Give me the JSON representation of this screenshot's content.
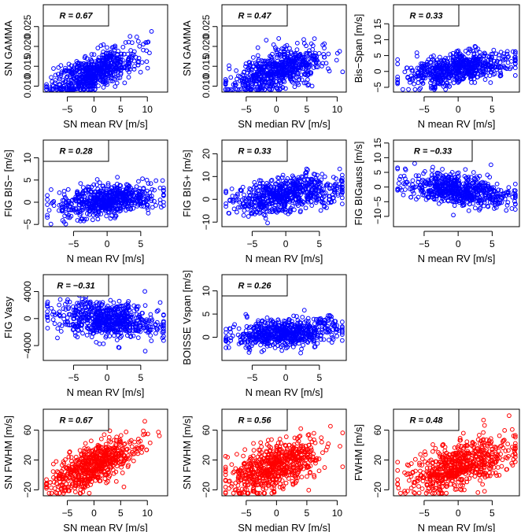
{
  "figure": {
    "colors": {
      "blue": "#0000ff",
      "red": "#ff0000"
    }
  },
  "chart_data": [
    {
      "type": "scatter",
      "color": "blue",
      "xlabel": "SN mean RV [m/s]",
      "ylabel": "SN GAMMA",
      "annotation": "R = 0.67",
      "xlim": [
        -9.5,
        13.8
      ],
      "ylim": [
        0.0085,
        0.0305
      ],
      "xticks": [
        -5,
        0,
        5,
        10
      ],
      "xticklabels": [
        "−5",
        "0",
        "5",
        "10"
      ],
      "yticks": [
        0.01,
        0.015,
        0.02,
        0.025
      ],
      "yticklabels": [
        "0.010",
        "0.015",
        "0.020",
        "0.025"
      ],
      "trend": {
        "slope": 0.00045,
        "intercept": 0.0136,
        "noise": 0.0022
      },
      "point_count": 650
    },
    {
      "type": "scatter",
      "color": "blue",
      "xlabel": "SN median RV [m/s]",
      "ylabel": "SN GAMMA",
      "annotation": "R = 0.47",
      "xlim": [
        -9.0,
        11.5
      ],
      "ylim": [
        0.0085,
        0.0305
      ],
      "xticks": [
        -5,
        0,
        5,
        10
      ],
      "xticklabels": [
        "−5",
        "0",
        "5",
        "10"
      ],
      "yticks": [
        0.01,
        0.015,
        0.02,
        0.025
      ],
      "yticklabels": [
        "0.010",
        "0.015",
        "0.020",
        "0.025"
      ],
      "trend": {
        "slope": 0.00042,
        "intercept": 0.0138,
        "noise": 0.0023
      },
      "point_count": 650
    },
    {
      "type": "scatter",
      "color": "blue",
      "xlabel": "N mean RV [m/s]",
      "ylabel": "Bis−Span [m/s]",
      "annotation": "R = 0.33",
      "xlim": [
        -9.5,
        9.0
      ],
      "ylim": [
        -6.5,
        21
      ],
      "xticks": [
        -5,
        0,
        5
      ],
      "xticklabels": [
        "−5",
        "0",
        "5"
      ],
      "yticks": [
        -5,
        0,
        5,
        10,
        15
      ],
      "yticklabels": [
        "−5",
        "0",
        "5",
        "10",
        "15"
      ],
      "trend": {
        "slope": 0.3,
        "intercept": 1.0,
        "noise": 2.4
      },
      "point_count": 650
    },
    {
      "type": "scatter",
      "color": "blue",
      "xlabel": "N mean RV [m/s]",
      "ylabel": "FIG BIS− [m/s]",
      "annotation": "R = 0.28",
      "xlim": [
        -9.5,
        9.0
      ],
      "ylim": [
        -5.5,
        14
      ],
      "xticks": [
        -5,
        0,
        5
      ],
      "xticklabels": [
        "−5",
        "0",
        "5"
      ],
      "yticks": [
        -5,
        0,
        5,
        10
      ],
      "yticklabels": [
        "−5",
        "0",
        "5",
        "10"
      ],
      "trend": {
        "slope": 0.18,
        "intercept": 0.4,
        "noise": 1.7
      },
      "point_count": 650
    },
    {
      "type": "scatter",
      "color": "blue",
      "xlabel": "N mean RV [m/s]",
      "ylabel": "FIG BIS+ [m/s]",
      "annotation": "R = 0.33",
      "xlim": [
        -9.5,
        9.0
      ],
      "ylim": [
        -12,
        26
      ],
      "xticks": [
        -5,
        0,
        5
      ],
      "xticklabels": [
        "−5",
        "0",
        "5"
      ],
      "yticks": [
        -10,
        0,
        10,
        20
      ],
      "yticklabels": [
        "−10",
        "0",
        "10",
        "20"
      ],
      "trend": {
        "slope": 0.4,
        "intercept": 2.0,
        "noise": 3.8
      },
      "point_count": 650
    },
    {
      "type": "scatter",
      "color": "blue",
      "xlabel": "N mean RV [m/s]",
      "ylabel": "FIG BIGauss [m/s]",
      "annotation": "R = −0.33",
      "xlim": [
        -9.5,
        9.0
      ],
      "ylim": [
        -13.5,
        16
      ],
      "xticks": [
        -5,
        0,
        5
      ],
      "xticklabels": [
        "−5",
        "0",
        "5"
      ],
      "yticks": [
        -10,
        -5,
        0,
        5,
        10,
        15
      ],
      "yticklabels": [
        "−10",
        "−5",
        "0",
        "5",
        "10",
        "15"
      ],
      "trend": {
        "slope": -0.3,
        "intercept": -1.0,
        "noise": 2.5
      },
      "point_count": 650
    },
    {
      "type": "scatter",
      "color": "blue",
      "xlabel": "N mean RV [m/s]",
      "ylabel": "FIG Vasy",
      "annotation": "R = −0.31",
      "xlim": [
        -9.5,
        9.0
      ],
      "ylim": [
        -6200,
        6500
      ],
      "xticks": [
        -5,
        0,
        5
      ],
      "xticklabels": [
        "−5",
        "0",
        "5"
      ],
      "yticks": [
        -4000,
        0,
        4000
      ],
      "yticklabels": [
        "−4000",
        "0",
        "4000"
      ],
      "trend": {
        "slope": -110,
        "intercept": -200,
        "noise": 1300
      },
      "point_count": 650
    },
    {
      "type": "scatter",
      "color": "blue",
      "xlabel": "N mean RV [m/s]",
      "ylabel": "BOISSE Vspan [m/s]",
      "annotation": "R = 0.26",
      "xlim": [
        -9.5,
        9.0
      ],
      "ylim": [
        -5.0,
        13.5
      ],
      "xticks": [
        -5,
        0,
        5
      ],
      "xticklabels": [
        "−5",
        "0",
        "5"
      ],
      "yticks": [
        0,
        5,
        10
      ],
      "yticklabels": [
        "0",
        "5",
        "10"
      ],
      "trend": {
        "slope": 0.14,
        "intercept": 1.0,
        "noise": 1.5
      },
      "point_count": 650
    },
    {
      "type": "scatter",
      "color": "red",
      "xlabel": "SN mean RV [m/s]",
      "ylabel": "SN FWHM [m/s]",
      "annotation": "R = 0.67",
      "xlim": [
        -9.5,
        13.8
      ],
      "ylim": [
        -28,
        88
      ],
      "xticks": [
        -5,
        0,
        5,
        10
      ],
      "xticklabels": [
        "−5",
        "0",
        "5",
        "10"
      ],
      "yticks": [
        -20,
        20,
        60
      ],
      "yticklabels": [
        "−20",
        "20",
        "60"
      ],
      "trend": {
        "slope": 3.0,
        "intercept": 12,
        "noise": 13
      },
      "point_count": 650
    },
    {
      "type": "scatter",
      "color": "red",
      "xlabel": "SN median RV [m/s]",
      "ylabel": "SN FWHM [m/s]",
      "annotation": "R = 0.56",
      "xlim": [
        -9.0,
        11.5
      ],
      "ylim": [
        -28,
        88
      ],
      "xticks": [
        -5,
        0,
        5,
        10
      ],
      "xticklabels": [
        "−5",
        "0",
        "5",
        "10"
      ],
      "yticks": [
        -20,
        20,
        60
      ],
      "yticklabels": [
        "−20",
        "20",
        "60"
      ],
      "trend": {
        "slope": 2.8,
        "intercept": 12,
        "noise": 15
      },
      "point_count": 650
    },
    {
      "type": "scatter",
      "color": "red",
      "xlabel": "N mean RV [m/s]",
      "ylabel": "FWHM [m/s]",
      "annotation": "R = 0.48",
      "xlim": [
        -9.5,
        9.0
      ],
      "ylim": [
        -28,
        88
      ],
      "xticks": [
        -5,
        0,
        5
      ],
      "xticklabels": [
        "−5",
        "0",
        "5"
      ],
      "yticks": [
        -20,
        20,
        60
      ],
      "yticklabels": [
        "−20",
        "20",
        "60"
      ],
      "trend": {
        "slope": 2.9,
        "intercept": 12,
        "noise": 15
      },
      "point_count": 650
    }
  ]
}
